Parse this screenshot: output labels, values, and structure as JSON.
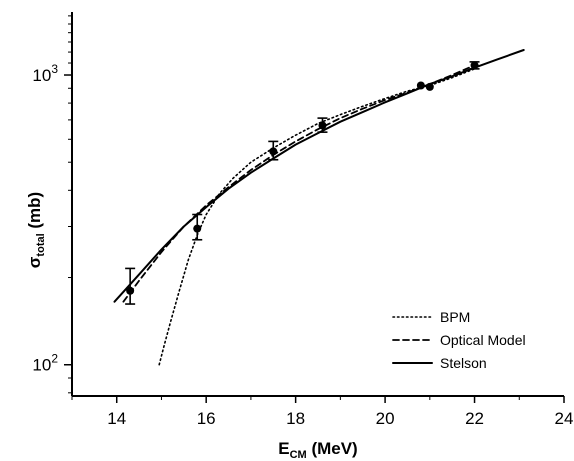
{
  "chart_data": {
    "type": "scatter",
    "title": "",
    "xlabel": {
      "main": "E",
      "sub": "CM",
      "tail": " (MeV)"
    },
    "ylabel": {
      "main": "σ",
      "sub": "total",
      "tail": " (mb)"
    },
    "xlim": [
      13,
      24
    ],
    "ylim": [
      78,
      1650
    ],
    "yscale": "log",
    "x_ticks": [
      14,
      16,
      18,
      20,
      22,
      24
    ],
    "y_ticks": [
      {
        "value": 100,
        "base": "10",
        "exp": "2"
      },
      {
        "value": 1000,
        "base": "10",
        "exp": "3"
      }
    ],
    "grid": false,
    "legend_position": "bottom-right",
    "series": [
      {
        "name": "BPM",
        "style": "dotted",
        "x": [
          14.95,
          15.05,
          15.2,
          15.4,
          15.6,
          15.8,
          16.0,
          16.3,
          16.6,
          17.0,
          17.5,
          18.0,
          18.5,
          19.0,
          19.5,
          20.0,
          20.5,
          21.0,
          21.5,
          22.0
        ],
        "y": [
          100,
          115,
          140,
          180,
          230,
          280,
          330,
          390,
          440,
          500,
          560,
          620,
          680,
          730,
          780,
          830,
          880,
          920,
          980,
          1050
        ]
      },
      {
        "name": "Optical Model",
        "style": "dashed",
        "x": [
          14.15,
          14.5,
          15.0,
          15.5,
          16.0,
          16.5,
          17.0,
          17.5,
          18.0,
          18.5,
          19.0,
          19.5,
          20.0,
          20.5,
          21.0,
          21.5,
          22.0
        ],
        "y": [
          165,
          195,
          245,
          300,
          355,
          410,
          470,
          530,
          590,
          650,
          710,
          765,
          820,
          870,
          930,
          1000,
          1080
        ]
      },
      {
        "name": "Stelson",
        "style": "solid",
        "x": [
          13.95,
          14.5,
          15.0,
          15.5,
          16.0,
          16.5,
          17.0,
          17.5,
          18.0,
          18.5,
          19.0,
          19.5,
          20.0,
          20.5,
          21.0,
          21.5,
          22.0,
          22.5,
          23.1
        ],
        "y": [
          165,
          205,
          250,
          300,
          350,
          405,
          460,
          515,
          575,
          630,
          690,
          745,
          805,
          865,
          930,
          990,
          1060,
          1130,
          1220
        ]
      }
    ],
    "points": [
      {
        "x": 14.3,
        "y": 180,
        "err_low": 162,
        "err_high": 215
      },
      {
        "x": 15.8,
        "y": 295,
        "err_low": 270,
        "err_high": 330
      },
      {
        "x": 17.5,
        "y": 545,
        "err_low": 510,
        "err_high": 590
      },
      {
        "x": 18.6,
        "y": 670,
        "err_low": 635,
        "err_high": 710
      },
      {
        "x": 20.8,
        "y": 920
      },
      {
        "x": 21.0,
        "y": 910
      },
      {
        "x": 22.0,
        "y": 1080,
        "err_low": 1050,
        "err_high": 1110
      }
    ]
  }
}
